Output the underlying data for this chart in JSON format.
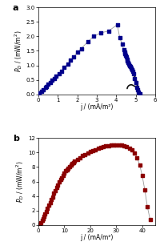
{
  "panel_a": {
    "title": "a",
    "xlabel": "j / (mA/m²)",
    "ylabel": "P_D / (mW/m²)",
    "xlim": [
      0,
      6
    ],
    "ylim": [
      0.0,
      3.0
    ],
    "xticks": [
      0,
      1,
      2,
      3,
      4,
      5,
      6
    ],
    "yticks": [
      0.0,
      0.5,
      1.0,
      1.5,
      2.0,
      2.5,
      3.0
    ],
    "line_color": "#999999",
    "marker_color": "#00008B",
    "black_curve_color": "#111111",
    "data_j": [
      0.05,
      0.15,
      0.25,
      0.35,
      0.42,
      0.5,
      0.6,
      0.7,
      0.82,
      0.92,
      1.05,
      1.18,
      1.32,
      1.5,
      1.65,
      1.82,
      2.0,
      2.2,
      2.55,
      2.85,
      3.2,
      3.6,
      4.05,
      4.18,
      4.3,
      4.38,
      4.42,
      4.45,
      4.48,
      4.52,
      4.56
    ],
    "data_p": [
      0.05,
      0.1,
      0.17,
      0.23,
      0.28,
      0.34,
      0.4,
      0.48,
      0.55,
      0.62,
      0.7,
      0.8,
      0.92,
      1.05,
      1.18,
      1.3,
      1.45,
      1.58,
      1.82,
      2.0,
      2.12,
      2.18,
      2.4,
      1.95,
      1.72,
      1.55,
      1.45,
      1.4,
      1.35,
      1.28,
      1.2
    ],
    "line_j": [
      0.05,
      0.15,
      0.25,
      0.35,
      0.42,
      0.5,
      0.6,
      0.7,
      0.82,
      0.92,
      1.05,
      1.18,
      1.32,
      1.5,
      1.65,
      1.82,
      2.0,
      2.2,
      2.55,
      2.85,
      3.2,
      3.6,
      4.05,
      4.18,
      4.3,
      4.38,
      4.42,
      4.45,
      4.48,
      4.52,
      4.56
    ],
    "line_p": [
      0.05,
      0.1,
      0.17,
      0.23,
      0.28,
      0.34,
      0.4,
      0.48,
      0.55,
      0.62,
      0.7,
      0.8,
      0.92,
      1.05,
      1.18,
      1.3,
      1.45,
      1.58,
      1.82,
      2.0,
      2.12,
      2.18,
      2.4,
      1.95,
      1.72,
      1.55,
      1.45,
      1.4,
      1.35,
      1.28,
      1.2
    ],
    "disc_j": [
      4.58,
      4.62,
      4.65,
      4.68,
      4.72,
      4.76,
      4.8,
      4.85,
      4.9,
      4.95,
      5.0,
      5.05,
      5.1,
      5.15,
      5.2
    ],
    "disc_p": [
      1.15,
      1.1,
      1.05,
      1.0,
      0.95,
      0.9,
      0.85,
      0.8,
      0.7,
      0.55,
      0.4,
      0.25,
      0.15,
      0.08,
      0.03
    ],
    "black_j": [
      4.56,
      4.58,
      4.6,
      4.63,
      4.66,
      4.7,
      4.74,
      4.78,
      4.83,
      4.88,
      4.93,
      4.98,
      5.02,
      5.06,
      5.09,
      5.11,
      5.1,
      5.06,
      5.02,
      4.97,
      4.92,
      4.86,
      4.8,
      4.74,
      4.69,
      4.64,
      4.6,
      4.57,
      4.56
    ],
    "black_p": [
      1.2,
      1.18,
      1.15,
      1.1,
      1.05,
      0.99,
      0.93,
      0.87,
      0.8,
      0.73,
      0.65,
      0.57,
      0.49,
      0.4,
      0.31,
      0.22,
      0.22,
      0.23,
      0.25,
      0.27,
      0.29,
      0.31,
      0.33,
      0.33,
      0.32,
      0.3,
      0.27,
      0.23,
      0.2
    ]
  },
  "panel_b": {
    "title": "b",
    "xlabel": "j / (mA/m²)",
    "ylabel": "P_D / (mW/m²)",
    "xlim": [
      0,
      45
    ],
    "ylim": [
      0,
      12
    ],
    "xticks": [
      0,
      10,
      20,
      30,
      40
    ],
    "yticks": [
      0,
      2,
      4,
      6,
      8,
      10,
      12
    ],
    "line_color": "#999999",
    "marker_color": "#8B0000",
    "data_j": [
      0.3,
      0.6,
      1.0,
      1.4,
      1.8,
      2.2,
      2.6,
      3.0,
      3.5,
      4.0,
      4.5,
      5.0,
      5.5,
      6.0,
      6.5,
      7.0,
      7.5,
      8.0,
      8.5,
      9.0,
      9.5,
      10.0,
      10.5,
      11.0,
      11.5,
      12.0,
      12.5,
      13.0,
      13.5,
      14.0,
      15.0,
      16.0,
      17.0,
      18.0,
      19.0,
      20.0,
      21.0,
      22.0,
      23.0,
      24.0,
      25.0,
      26.0,
      27.0,
      28.0,
      29.0,
      30.0,
      31.0,
      32.0,
      33.0,
      34.0,
      35.0,
      36.0,
      37.0,
      38.0,
      39.0,
      40.0,
      41.0,
      42.0,
      43.0
    ],
    "data_p": [
      0.05,
      0.15,
      0.35,
      0.6,
      0.9,
      1.2,
      1.55,
      1.9,
      2.3,
      2.7,
      3.1,
      3.5,
      3.9,
      4.35,
      4.75,
      5.2,
      5.55,
      5.9,
      6.25,
      6.55,
      6.85,
      7.15,
      7.45,
      7.65,
      7.85,
      8.05,
      8.25,
      8.45,
      8.62,
      8.78,
      9.05,
      9.3,
      9.55,
      9.75,
      9.92,
      10.1,
      10.25,
      10.4,
      10.55,
      10.68,
      10.78,
      10.86,
      10.92,
      10.97,
      11.0,
      11.02,
      11.02,
      11.0,
      10.95,
      10.82,
      10.62,
      10.35,
      9.95,
      9.3,
      8.3,
      6.8,
      4.8,
      2.5,
      0.8
    ]
  }
}
